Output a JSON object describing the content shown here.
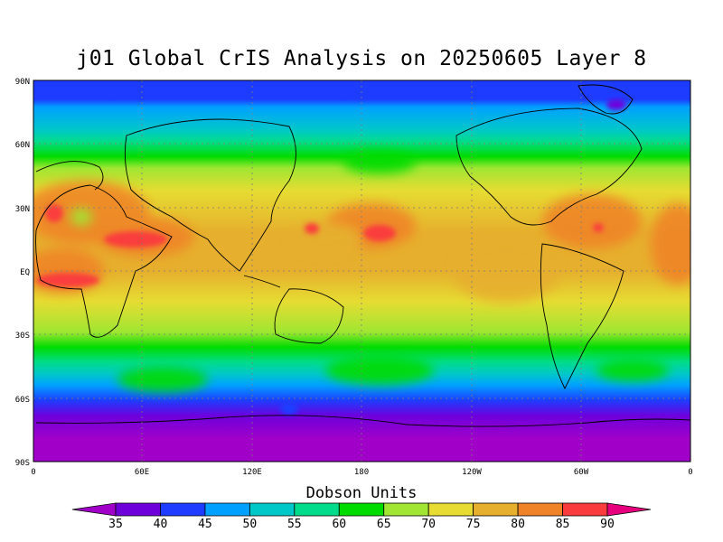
{
  "title": "j01 Global CrIS Analysis on 20250605 Layer 8",
  "axes": {
    "y_ticks": [
      "90N",
      "60N",
      "30N",
      "EQ",
      "30S",
      "60S",
      "90S"
    ],
    "x_ticks": [
      "0",
      "60E",
      "120E",
      "180",
      "120W",
      "60W",
      "0"
    ]
  },
  "colorbar": {
    "title": "Dobson Units",
    "levels": [
      "35",
      "40",
      "45",
      "50",
      "55",
      "60",
      "65",
      "70",
      "75",
      "80",
      "85",
      "90"
    ],
    "colors": [
      "#a000c8",
      "#6e00dc",
      "#1e3cff",
      "#00a0ff",
      "#00c8c8",
      "#00dc8c",
      "#00dc00",
      "#a0e632",
      "#e6dc32",
      "#e6af2d",
      "#f08228",
      "#fa3c3c",
      "#e6007d"
    ]
  },
  "chart_data": {
    "type": "heatmap",
    "title": "j01 Global CrIS Analysis on 20250605 Layer 8",
    "units": "Dobson Units",
    "xlim": [
      "0",
      "0"
    ],
    "ylim": [
      "90S",
      "90N"
    ],
    "grid": "dotted",
    "zonal_profile": [
      {
        "lat": 85,
        "value": 42
      },
      {
        "lat": 75,
        "value": 48
      },
      {
        "lat": 62,
        "value": 60
      },
      {
        "lat": 50,
        "value": 68
      },
      {
        "lat": 35,
        "value": 74
      },
      {
        "lat": 20,
        "value": 78
      },
      {
        "lat": 0,
        "value": 79
      },
      {
        "lat": -15,
        "value": 76
      },
      {
        "lat": -30,
        "value": 70
      },
      {
        "lat": -42,
        "value": 63
      },
      {
        "lat": -52,
        "value": 55
      },
      {
        "lat": -62,
        "value": 45
      },
      {
        "lat": -75,
        "value": 37
      },
      {
        "lat": -85,
        "value": 35
      }
    ],
    "hotspots": [
      {
        "lon": 10,
        "lat": 28,
        "value": 85
      },
      {
        "lon": 45,
        "lat": 15,
        "value": 85
      },
      {
        "lon": 15,
        "lat": -2,
        "value": 85
      },
      {
        "lon": 155,
        "lat": 22,
        "value": 85
      },
      {
        "lon": 190,
        "lat": 20,
        "value": 85
      },
      {
        "lon": 290,
        "lat": 20,
        "value": 85
      }
    ]
  }
}
